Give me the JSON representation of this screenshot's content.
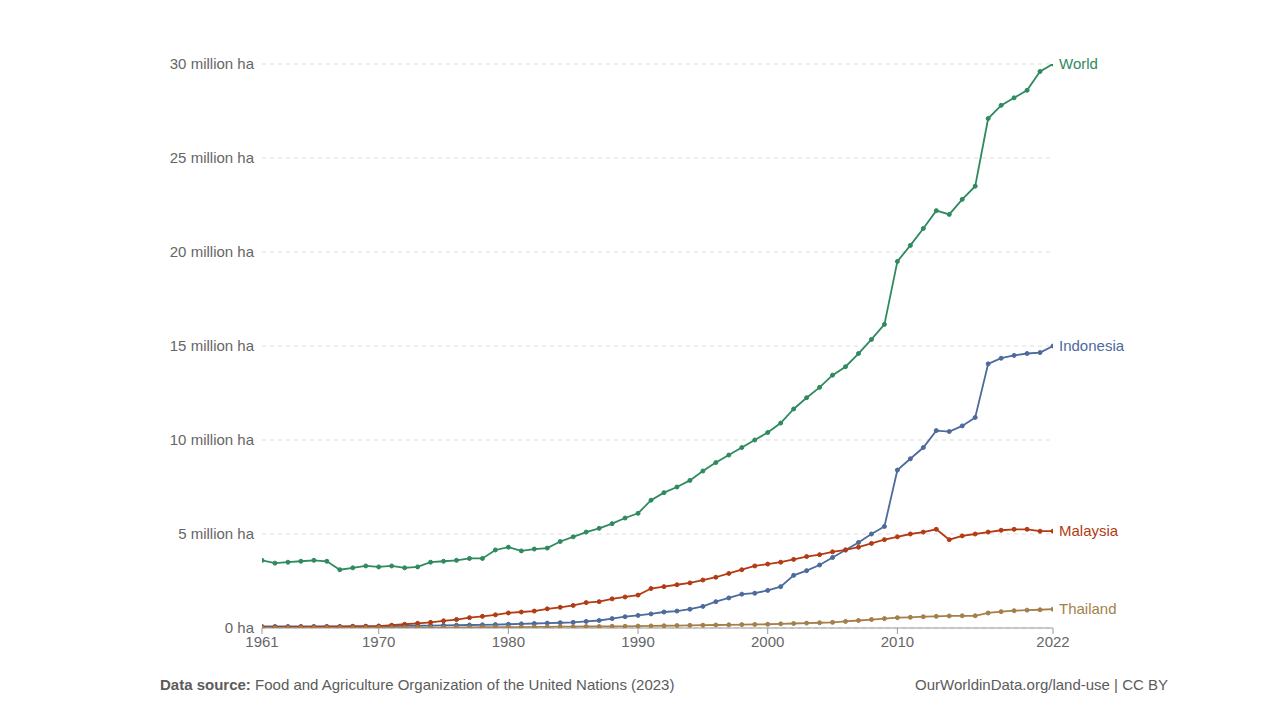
{
  "chart_data": {
    "type": "line",
    "source_label": "Data source:",
    "source": "Food and Agriculture Organization of the United Nations (2023)",
    "credit": "OurWorldinData.org/land-use | CC BY",
    "x": [
      1961,
      1962,
      1963,
      1964,
      1965,
      1966,
      1967,
      1968,
      1969,
      1970,
      1971,
      1972,
      1973,
      1974,
      1975,
      1976,
      1977,
      1978,
      1979,
      1980,
      1981,
      1982,
      1983,
      1984,
      1985,
      1986,
      1987,
      1988,
      1989,
      1990,
      1991,
      1992,
      1993,
      1994,
      1995,
      1996,
      1997,
      1998,
      1999,
      2000,
      2001,
      2002,
      2003,
      2004,
      2005,
      2006,
      2007,
      2008,
      2009,
      2010,
      2011,
      2012,
      2013,
      2014,
      2015,
      2016,
      2017,
      2018,
      2019,
      2020,
      2021,
      2022
    ],
    "series": [
      {
        "name": "World",
        "color": "#2f8a5f",
        "marker": "circle",
        "values": [
          3.6,
          3.45,
          3.5,
          3.55,
          3.6,
          3.55,
          3.1,
          3.2,
          3.3,
          3.25,
          3.3,
          3.2,
          3.25,
          3.5,
          3.55,
          3.6,
          3.7,
          3.7,
          4.15,
          4.3,
          4.1,
          4.2,
          4.25,
          4.6,
          4.85,
          5.1,
          5.3,
          5.55,
          5.85,
          6.1,
          6.8,
          7.2,
          7.5,
          7.85,
          8.35,
          8.8,
          9.2,
          9.6,
          10.0,
          10.4,
          10.9,
          11.65,
          12.25,
          12.8,
          13.45,
          13.9,
          14.6,
          15.35,
          16.15,
          19.5,
          20.35,
          21.25,
          22.2,
          22.0,
          22.8,
          23.5,
          27.1,
          27.8,
          28.2,
          28.6,
          29.6,
          30.0
        ]
      },
      {
        "name": "Indonesia",
        "color": "#4c6a9c",
        "marker": "circle",
        "values": [
          0.08,
          0.08,
          0.08,
          0.08,
          0.08,
          0.08,
          0.08,
          0.09,
          0.09,
          0.1,
          0.1,
          0.11,
          0.12,
          0.13,
          0.14,
          0.15,
          0.16,
          0.17,
          0.18,
          0.2,
          0.22,
          0.24,
          0.26,
          0.28,
          0.3,
          0.35,
          0.4,
          0.5,
          0.6,
          0.67,
          0.75,
          0.85,
          0.9,
          1.0,
          1.15,
          1.4,
          1.6,
          1.8,
          1.85,
          2.0,
          2.2,
          2.8,
          3.05,
          3.35,
          3.75,
          4.15,
          4.55,
          5.0,
          5.4,
          8.4,
          9.0,
          9.6,
          10.5,
          10.45,
          10.75,
          11.2,
          14.05,
          14.35,
          14.5,
          14.6,
          14.65,
          15.0
        ]
      },
      {
        "name": "Malaysia",
        "color": "#b23b14",
        "marker": "circle",
        "values": [
          0.05,
          0.05,
          0.05,
          0.06,
          0.06,
          0.07,
          0.07,
          0.08,
          0.09,
          0.1,
          0.15,
          0.2,
          0.25,
          0.3,
          0.38,
          0.45,
          0.55,
          0.62,
          0.7,
          0.8,
          0.85,
          0.9,
          1.02,
          1.1,
          1.2,
          1.35,
          1.4,
          1.55,
          1.65,
          1.75,
          2.1,
          2.2,
          2.3,
          2.4,
          2.55,
          2.7,
          2.9,
          3.1,
          3.3,
          3.4,
          3.5,
          3.65,
          3.8,
          3.9,
          4.05,
          4.15,
          4.3,
          4.5,
          4.7,
          4.85,
          5.0,
          5.1,
          5.25,
          4.7,
          4.9,
          5.0,
          5.1,
          5.2,
          5.25,
          5.25,
          5.15,
          5.15
        ]
      },
      {
        "name": "Thailand",
        "color": "#a57f4a",
        "marker": "circle",
        "values": [
          0.01,
          0.01,
          0.01,
          0.01,
          0.01,
          0.01,
          0.01,
          0.01,
          0.01,
          0.02,
          0.02,
          0.02,
          0.02,
          0.02,
          0.02,
          0.03,
          0.03,
          0.04,
          0.04,
          0.05,
          0.05,
          0.06,
          0.06,
          0.07,
          0.07,
          0.08,
          0.08,
          0.09,
          0.09,
          0.1,
          0.11,
          0.12,
          0.13,
          0.14,
          0.15,
          0.16,
          0.17,
          0.18,
          0.19,
          0.2,
          0.22,
          0.24,
          0.26,
          0.28,
          0.3,
          0.35,
          0.4,
          0.45,
          0.5,
          0.55,
          0.57,
          0.6,
          0.62,
          0.64,
          0.65,
          0.65,
          0.8,
          0.87,
          0.92,
          0.95,
          0.97,
          1.0
        ]
      }
    ],
    "xlim": [
      1961,
      2022
    ],
    "xticks": [
      1961,
      1970,
      1980,
      1990,
      2000,
      2010,
      2022
    ],
    "ylim": [
      0,
      30
    ],
    "yticks": [
      {
        "value": 0,
        "label": "0 ha"
      },
      {
        "value": 5,
        "label": "5 million ha"
      },
      {
        "value": 10,
        "label": "10 million ha"
      },
      {
        "value": 15,
        "label": "15 million ha"
      },
      {
        "value": 20,
        "label": "20 million ha"
      },
      {
        "value": 25,
        "label": "25 million ha"
      },
      {
        "value": 30,
        "label": "30 million ha"
      }
    ],
    "grid": true
  }
}
